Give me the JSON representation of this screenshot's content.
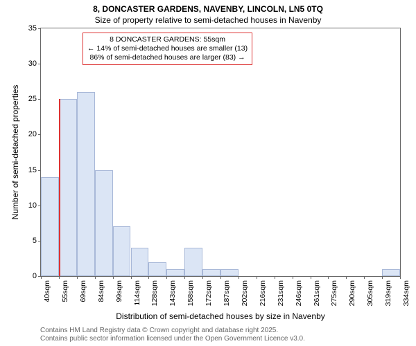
{
  "title_line1": "8, DONCASTER GARDENS, NAVENBY, LINCOLN, LN5 0TQ",
  "title_line2": "Size of property relative to semi-detached houses in Navenby",
  "ylabel": "Number of semi-detached properties",
  "xlabel": "Distribution of semi-detached houses by size in Navenby",
  "footer_line1": "Contains HM Land Registry data © Crown copyright and database right 2025.",
  "footer_line2": "Contains public sector information licensed under the Open Government Licence v3.0.",
  "chart": {
    "type": "histogram",
    "background_color": "#ffffff",
    "bar_fill": "#dbe5f5",
    "bar_border": "#a8b8d8",
    "axis_color": "#666666",
    "ylim": [
      0,
      35
    ],
    "yticks": [
      0,
      5,
      10,
      15,
      20,
      25,
      30,
      35
    ],
    "xtick_labels": [
      "40sqm",
      "55sqm",
      "69sqm",
      "84sqm",
      "99sqm",
      "114sqm",
      "128sqm",
      "143sqm",
      "158sqm",
      "172sqm",
      "187sqm",
      "202sqm",
      "216sqm",
      "231sqm",
      "246sqm",
      "261sqm",
      "275sqm",
      "290sqm",
      "305sqm",
      "319sqm",
      "334sqm"
    ],
    "bars": [
      14,
      25,
      26,
      15,
      7,
      4,
      2,
      1,
      4,
      1,
      1,
      0,
      0,
      0,
      0,
      0,
      0,
      0,
      0,
      1
    ],
    "label_fontsize": 12,
    "tick_fontsize": 11,
    "xtick_fontsize": 10.5,
    "marker": {
      "bar_index": 1,
      "color": "#d33"
    }
  },
  "annotation": {
    "line1": "8 DONCASTER GARDENS: 55sqm",
    "line2": "← 14% of semi-detached houses are smaller (13)",
    "line3": "86% of semi-detached houses are larger (83) →",
    "border_color": "#d33",
    "background": "#ffffff",
    "fontsize": 10.5
  }
}
